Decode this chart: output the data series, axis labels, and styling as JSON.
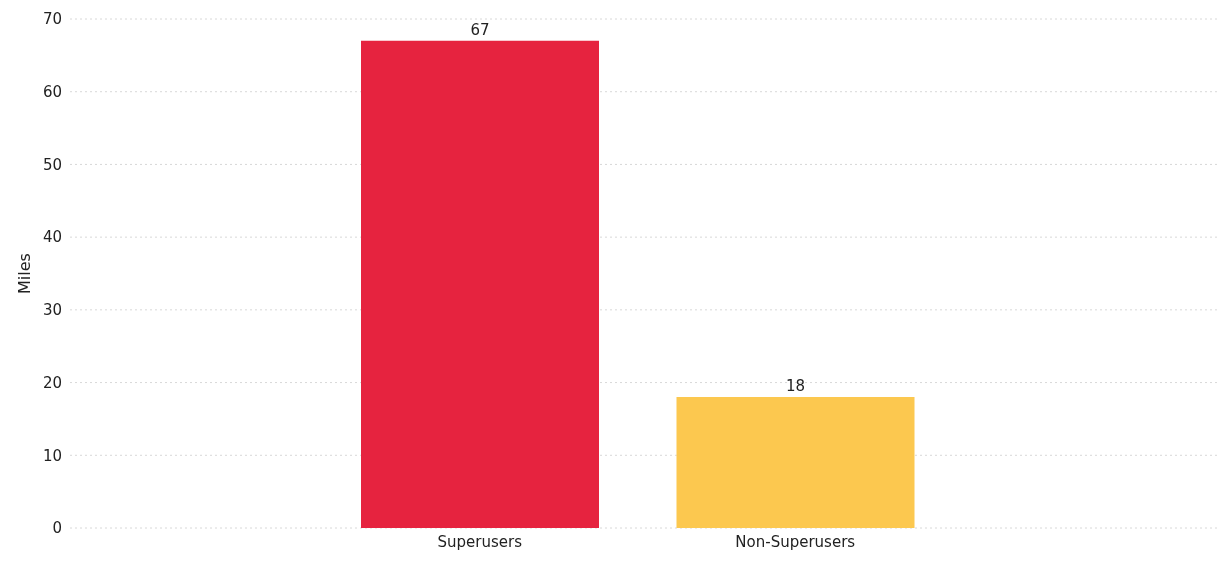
{
  "chart_data": {
    "type": "bar",
    "ylabel": "Miles",
    "categories": [
      "Superusers",
      "Non-Superusers"
    ],
    "values": [
      67,
      18
    ],
    "colors": [
      "#e6233f",
      "#fcc84f"
    ],
    "ylim": [
      0,
      70
    ],
    "yticks": [
      0,
      10,
      20,
      30,
      40,
      50,
      60,
      70
    ],
    "grid": "y",
    "data_labels": true
  }
}
